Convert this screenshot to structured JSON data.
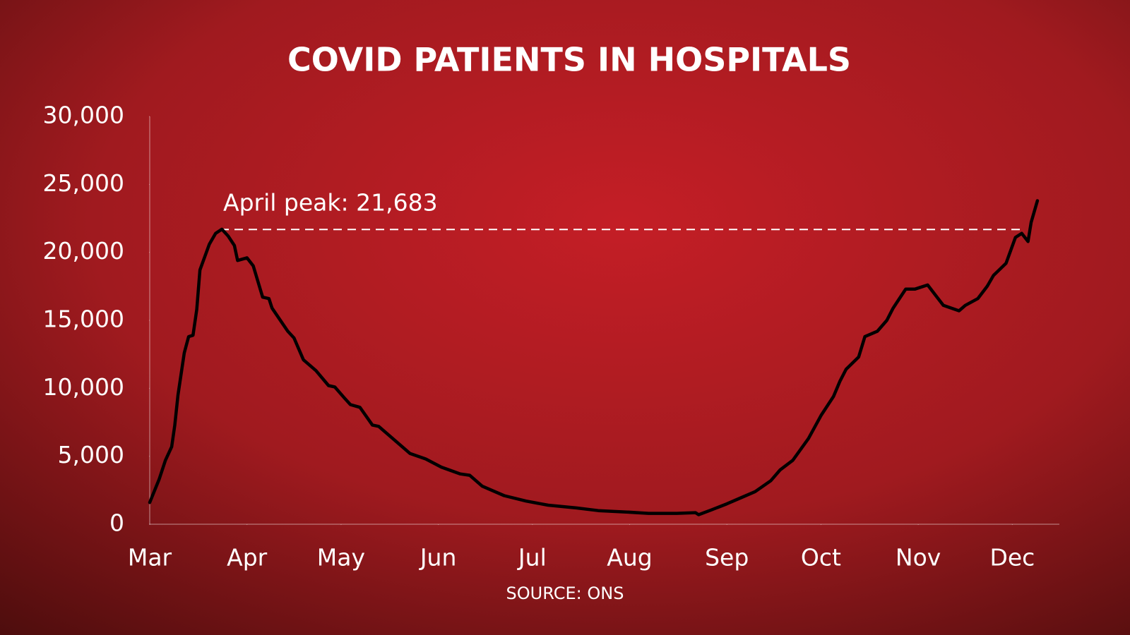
{
  "chart_data": {
    "type": "line",
    "title": "COVID PATIENTS IN HOSPITALS",
    "source": "SOURCE: ONS",
    "color": "#000000",
    "x": [
      0,
      3,
      5,
      7,
      8,
      9,
      11,
      12.4,
      13.8,
      15,
      16,
      19,
      21,
      23,
      25,
      27,
      28,
      31,
      33,
      36,
      38,
      39,
      44,
      46,
      49,
      53,
      57,
      59,
      62,
      64,
      67,
      71,
      73,
      79,
      83,
      88,
      93,
      99,
      102,
      106,
      113,
      120,
      127,
      136,
      143,
      152,
      159,
      168,
      174,
      175,
      179,
      184,
      189,
      193,
      198,
      201,
      205,
      210,
      214,
      218,
      220,
      222,
      226,
      228,
      232,
      235,
      237,
      241,
      244,
      248,
      251,
      253,
      258,
      260,
      264,
      267,
      269,
      273,
      276,
      278,
      280,
      281,
      283
    ],
    "values": [
      1600,
      3300,
      4700,
      5700,
      7300,
      9500,
      12600,
      13800,
      13900,
      15800,
      18700,
      20600,
      21400,
      21700,
      21200,
      20500,
      19400,
      19600,
      19000,
      16700,
      16600,
      15900,
      14200,
      13700,
      12100,
      11300,
      10200,
      10100,
      9300,
      8800,
      8600,
      7300,
      7200,
      6000,
      5200,
      4800,
      4200,
      3700,
      3600,
      2800,
      2100,
      1700,
      1400,
      1200,
      1000,
      900,
      800,
      800,
      850,
      700,
      1050,
      1500,
      2000,
      2400,
      3200,
      4000,
      4700,
      6300,
      8000,
      9400,
      10500,
      11400,
      12300,
      13800,
      14200,
      15000,
      15900,
      17300,
      17300,
      17600,
      16700,
      16100,
      15700,
      16100,
      16600,
      17500,
      18300,
      19200,
      21100,
      21400,
      20800,
      22200,
      23800
    ],
    "xlim": [
      0,
      290
    ],
    "xticks": [
      {
        "value": 0,
        "label": "Mar"
      },
      {
        "value": 31,
        "label": "Apr"
      },
      {
        "value": 61,
        "label": "May"
      },
      {
        "value": 92,
        "label": "Jun"
      },
      {
        "value": 122,
        "label": "Jul"
      },
      {
        "value": 153,
        "label": "Aug"
      },
      {
        "value": 184,
        "label": "Sep"
      },
      {
        "value": 214,
        "label": "Oct"
      },
      {
        "value": 245,
        "label": "Nov"
      },
      {
        "value": 275,
        "label": "Dec"
      }
    ],
    "ylim": [
      0,
      30000
    ],
    "yticks": [
      0,
      {
        "value": 5000,
        "label": "5,000"
      },
      {
        "value": 10000,
        "label": "10,000"
      },
      {
        "value": 15000,
        "label": "15,000"
      },
      {
        "value": 20000,
        "label": "20,000"
      },
      {
        "value": 25000,
        "label": "25,000"
      },
      {
        "value": 30000,
        "label": "30,000"
      }
    ],
    "annotation": {
      "text": "April peak: 21,683",
      "value": 21683
    }
  }
}
